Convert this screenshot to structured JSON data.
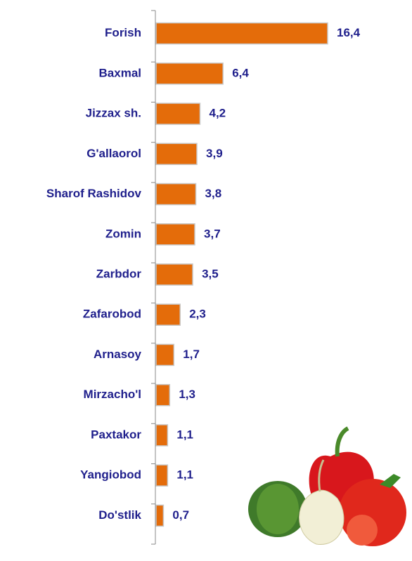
{
  "chart_data": {
    "type": "bar",
    "orientation": "horizontal",
    "categories": [
      "Forish",
      "Baxmal",
      "Jizzax sh.",
      "G'allaorol",
      "Sharof Rashidov",
      "Zomin",
      "Zarbdor",
      "Zafarobod",
      "Arnasoy",
      "Mirzacho'l",
      "Paxtakor",
      "Yangiobod",
      "Do'stlik"
    ],
    "values": [
      16.4,
      6.4,
      4.2,
      3.9,
      3.8,
      3.7,
      3.5,
      2.3,
      1.7,
      1.3,
      1.1,
      1.1,
      0.7
    ],
    "value_labels": [
      "16,4",
      "6,4",
      "4,2",
      "3,9",
      "3,8",
      "3,7",
      "3,5",
      "2,3",
      "1,7",
      "1,3",
      "1,1",
      "1,1",
      "0,7"
    ],
    "color": "#e46c0a"
  }
}
